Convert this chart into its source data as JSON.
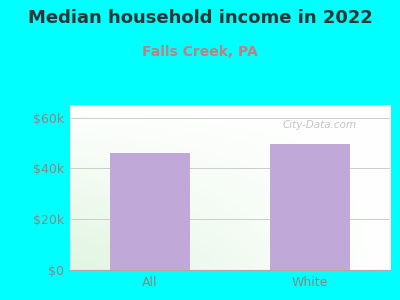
{
  "title": "Median household income in 2022",
  "subtitle": "Falls Creek, PA",
  "categories": [
    "All",
    "White"
  ],
  "values": [
    46000,
    49500
  ],
  "bar_color": "#c0a8d8",
  "background_outer": "#00ffff",
  "yticks": [
    0,
    20000,
    40000,
    60000
  ],
  "ytick_labels": [
    "$0",
    "$20k",
    "$40k",
    "$60k"
  ],
  "ylim": [
    0,
    65000
  ],
  "title_fontsize": 13,
  "subtitle_fontsize": 10,
  "tick_color": "#888880",
  "title_color": "#333333",
  "subtitle_color": "#c08080",
  "watermark": "City-Data.com",
  "bar_width": 0.5
}
